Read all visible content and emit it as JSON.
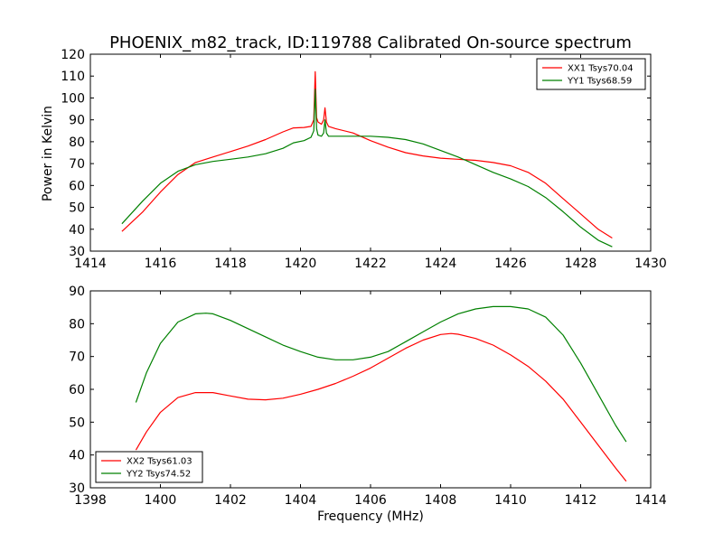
{
  "figure": {
    "title": "PHOENIX_m82_track, ID:119788 Calibrated On-source spectrum",
    "ylabel": "Power in Kelvin",
    "xlabel": "Frequency (MHz)"
  },
  "chart_data": [
    {
      "type": "line",
      "title": "PHOENIX_m82_track, ID:119788 Calibrated On-source spectrum",
      "xlabel": "",
      "ylabel": "Power in Kelvin",
      "xlim": [
        1414,
        1430
      ],
      "ylim": [
        30,
        120
      ],
      "xticks": [
        1414,
        1416,
        1418,
        1420,
        1422,
        1424,
        1426,
        1428,
        1430
      ],
      "yticks": [
        30,
        40,
        50,
        60,
        70,
        80,
        90,
        100,
        110,
        120
      ],
      "grid": false,
      "legend_position": "top-right",
      "series": [
        {
          "name": "XX1 Tsys70.04",
          "color": "#ff0000",
          "x": [
            1414.9,
            1415.5,
            1416.0,
            1416.5,
            1417.0,
            1417.5,
            1418.0,
            1418.5,
            1419.0,
            1419.5,
            1419.8,
            1420.1,
            1420.3,
            1420.38,
            1420.42,
            1420.46,
            1420.5,
            1420.6,
            1420.66,
            1420.7,
            1420.74,
            1420.8,
            1421.0,
            1421.5,
            1422.0,
            1422.5,
            1423.0,
            1423.5,
            1424.0,
            1424.5,
            1425.0,
            1425.5,
            1426.0,
            1426.5,
            1427.0,
            1427.5,
            1428.0,
            1428.5,
            1428.9
          ],
          "values": [
            39,
            48,
            57,
            65,
            70.5,
            73,
            75.5,
            78,
            81,
            84.5,
            86.3,
            86.5,
            87,
            90,
            112,
            91,
            89,
            88,
            90,
            95.5,
            89,
            87,
            86,
            84,
            80.5,
            77.5,
            75,
            73.5,
            72.5,
            72,
            71.5,
            70.5,
            69,
            66,
            61,
            54,
            47,
            40,
            36
          ]
        },
        {
          "name": "YY1 Tsys68.59",
          "color": "#008000",
          "x": [
            1414.9,
            1415.5,
            1416.0,
            1416.5,
            1417.0,
            1417.5,
            1418.0,
            1418.5,
            1419.0,
            1419.5,
            1419.8,
            1420.1,
            1420.3,
            1420.38,
            1420.42,
            1420.46,
            1420.5,
            1420.6,
            1420.66,
            1420.7,
            1420.74,
            1420.8,
            1421.0,
            1421.5,
            1422.0,
            1422.5,
            1423.0,
            1423.5,
            1424.0,
            1424.5,
            1425.0,
            1425.5,
            1426.0,
            1426.5,
            1427.0,
            1427.5,
            1428.0,
            1428.5,
            1428.9
          ],
          "values": [
            42.5,
            53,
            61,
            66.5,
            69.5,
            71,
            72,
            73,
            74.5,
            77,
            79.5,
            80.5,
            82,
            85,
            104,
            86,
            83,
            82.5,
            84,
            90,
            84,
            82.5,
            82.5,
            82.5,
            82.5,
            82,
            81,
            79,
            76,
            73,
            69.5,
            66,
            63,
            59.5,
            54.5,
            48,
            41,
            35,
            32
          ]
        }
      ]
    },
    {
      "type": "line",
      "title": "",
      "xlabel": "Frequency (MHz)",
      "ylabel": "",
      "xlim": [
        1398,
        1414
      ],
      "ylim": [
        30,
        90
      ],
      "xticks": [
        1398,
        1400,
        1402,
        1404,
        1406,
        1408,
        1410,
        1412,
        1414
      ],
      "yticks": [
        30,
        40,
        50,
        60,
        70,
        80,
        90
      ],
      "grid": false,
      "legend_position": "bottom-left",
      "series": [
        {
          "name": "XX2 Tsys61.03",
          "color": "#ff0000",
          "x": [
            1399.3,
            1399.6,
            1400.0,
            1400.5,
            1401.0,
            1401.5,
            1402.0,
            1402.5,
            1403.0,
            1403.5,
            1404.0,
            1404.5,
            1405.0,
            1405.5,
            1406.0,
            1406.5,
            1407.0,
            1407.5,
            1408.0,
            1408.3,
            1408.5,
            1409.0,
            1409.5,
            1410.0,
            1410.5,
            1411.0,
            1411.5,
            1412.0,
            1412.5,
            1413.0,
            1413.3
          ],
          "values": [
            41.5,
            47,
            53,
            57.5,
            59,
            59,
            58,
            57,
            56.8,
            57.3,
            58.5,
            60,
            61.8,
            64,
            66.5,
            69.5,
            72.5,
            75,
            76.7,
            77,
            76.8,
            75.5,
            73.5,
            70.5,
            67,
            62.5,
            57,
            50,
            43,
            36,
            32
          ]
        },
        {
          "name": "YY2 Tsys74.52",
          "color": "#008000",
          "x": [
            1399.3,
            1399.6,
            1400.0,
            1400.5,
            1401.0,
            1401.3,
            1401.5,
            1402.0,
            1402.5,
            1403.0,
            1403.5,
            1404.0,
            1404.5,
            1405.0,
            1405.5,
            1406.0,
            1406.5,
            1407.0,
            1407.5,
            1408.0,
            1408.5,
            1409.0,
            1409.5,
            1410.0,
            1410.5,
            1411.0,
            1411.5,
            1412.0,
            1412.5,
            1413.0,
            1413.3
          ],
          "values": [
            56,
            65,
            74,
            80.5,
            83,
            83.2,
            83,
            81,
            78.5,
            76,
            73.5,
            71.5,
            69.8,
            69,
            69,
            69.8,
            71.5,
            74.5,
            77.5,
            80.5,
            83,
            84.5,
            85.2,
            85.2,
            84.5,
            82,
            76.5,
            68,
            58.5,
            49,
            44
          ]
        }
      ]
    }
  ]
}
